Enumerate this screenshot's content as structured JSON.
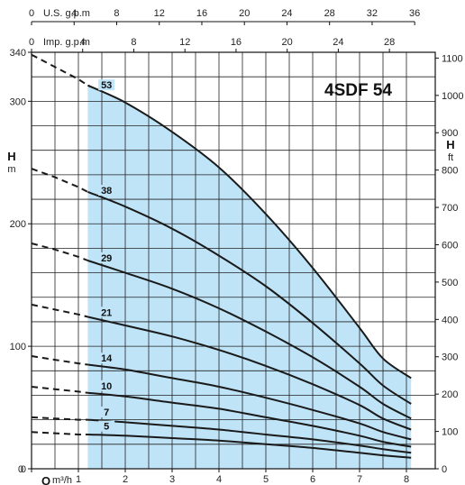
{
  "chart_data": {
    "type": "line",
    "title": "4SDF 54",
    "x_axis": {
      "label": "Q m³/h",
      "label_main": "Q",
      "label_unit": "m³/h",
      "range": [
        0,
        8.4
      ],
      "ticks": [
        0,
        1,
        2,
        3,
        4,
        5,
        6,
        7,
        8
      ]
    },
    "y_axis_left": {
      "label": "H",
      "unit": "m",
      "range": [
        0,
        340
      ],
      "ticks": [
        0,
        100,
        200,
        300,
        340
      ]
    },
    "y_axis_right": {
      "label": "H",
      "unit": "ft",
      "ticks": [
        0,
        100,
        200,
        300,
        400,
        500,
        600,
        700,
        800,
        900,
        1000,
        1100
      ]
    },
    "top_axis_us": {
      "label": "U.S. g.p.m",
      "ticks": [
        0,
        4,
        8,
        12,
        16,
        20,
        24,
        28,
        32,
        36
      ]
    },
    "top_axis_imp": {
      "label": "Imp. g.p.m",
      "ticks": [
        0,
        4,
        8,
        12,
        16,
        20,
        24,
        28
      ]
    },
    "recommended_range": [
      1.2,
      8.1
    ],
    "grid": true,
    "series": [
      {
        "name": "53",
        "x": [
          0,
          0.5,
          1.0,
          1.2,
          2,
          3,
          4,
          5,
          6,
          7,
          7.5,
          8.1
        ],
        "y": [
          338,
          328,
          318,
          313,
          299,
          275,
          246,
          208,
          164,
          115,
          90,
          74
        ]
      },
      {
        "name": "38",
        "x": [
          0,
          0.5,
          1.0,
          1.2,
          2,
          3,
          4,
          5,
          6,
          7,
          7.5,
          8.1
        ],
        "y": [
          245,
          238,
          230,
          226,
          214,
          196,
          174,
          149,
          119,
          86,
          68,
          53
        ]
      },
      {
        "name": "29",
        "x": [
          0,
          0.5,
          1.0,
          1.2,
          2,
          3,
          4,
          5,
          6,
          7,
          7.5,
          8.1
        ],
        "y": [
          184,
          179,
          173,
          170,
          160,
          147,
          131,
          112,
          91,
          67,
          53,
          41
        ]
      },
      {
        "name": "21",
        "x": [
          0,
          0.5,
          1.0,
          1.2,
          2,
          3,
          4,
          5,
          6,
          7,
          7.5,
          8.1
        ],
        "y": [
          134,
          130,
          126,
          124,
          117,
          108,
          97,
          84,
          69,
          52,
          41,
          32
        ]
      },
      {
        "name": "14",
        "x": [
          0,
          0.5,
          1.0,
          1.2,
          2,
          3,
          4,
          5,
          6,
          7,
          7.5,
          8.1
        ],
        "y": [
          92,
          89,
          86,
          85,
          81,
          74,
          67,
          58,
          48,
          37,
          30,
          24
        ]
      },
      {
        "name": "10",
        "x": [
          0,
          0.5,
          1.0,
          1.2,
          2,
          3,
          4,
          5,
          6,
          7,
          7.5,
          8.1
        ],
        "y": [
          67,
          65,
          63,
          62,
          59,
          54,
          49,
          42,
          35,
          27,
          22,
          18
        ]
      },
      {
        "name": "7",
        "x": [
          0,
          0.5,
          1.0,
          1.2,
          2,
          3,
          4,
          5,
          6,
          7,
          7.5,
          8.1
        ],
        "y": [
          42,
          41,
          40,
          40,
          38,
          35,
          32,
          28,
          24,
          19,
          16,
          13
        ]
      },
      {
        "name": "5",
        "x": [
          0,
          0.5,
          1.0,
          1.2,
          2,
          3,
          4,
          5,
          6,
          7,
          7.5,
          8.1
        ],
        "y": [
          30,
          29,
          28,
          28,
          27,
          25,
          23,
          20,
          17,
          13,
          11,
          9
        ]
      }
    ],
    "label_positions_x": {
      "53": 1.6,
      "38": 1.6,
      "29": 1.6,
      "21": 1.6,
      "14": 1.6,
      "10": 1.6,
      "7": 1.6,
      "5": 1.6
    }
  },
  "colors": {
    "shade": "#bfe3f7",
    "curve": "#1a1a1a",
    "grid": "#222222"
  }
}
